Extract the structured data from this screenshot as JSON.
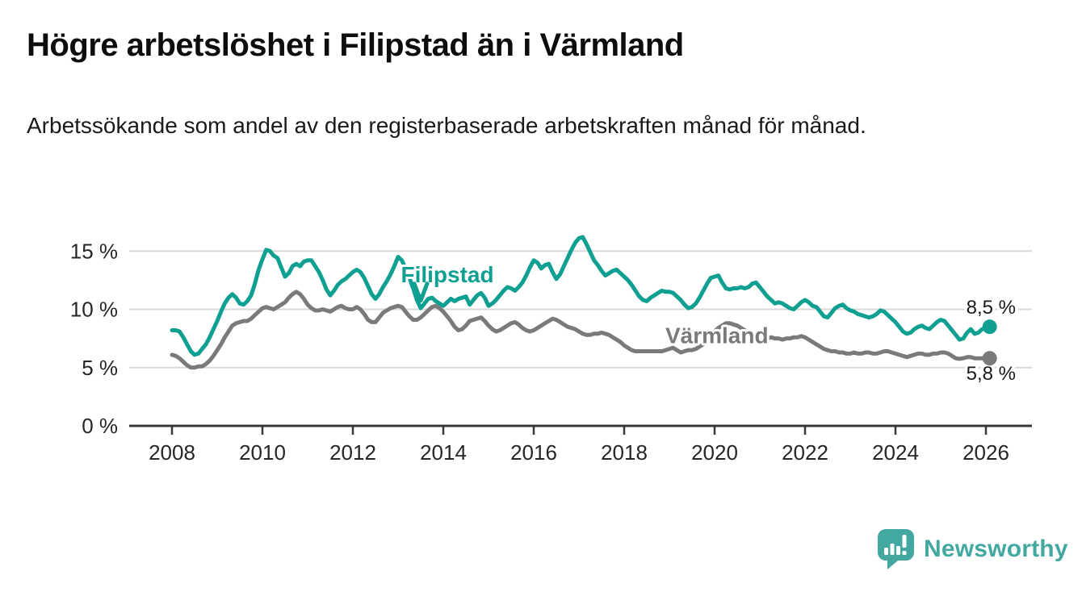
{
  "header": {
    "title": "Högre arbetslöshet i Filipstad än i Värmland",
    "subtitle": "Arbetssökande som andel av den registerbaserade arbetskraften månad för månad."
  },
  "footer": {
    "brand": "Newsworthy"
  },
  "colors": {
    "filipstad": "#10a091",
    "varmland": "#7a7a7a",
    "grid": "#d9d9d9",
    "axis": "#383838",
    "text": "#262626",
    "logo": "#42a8a0"
  },
  "chart_data": {
    "type": "line",
    "unit": "%",
    "decimal_separator": ",",
    "title": "Högre arbetslöshet i Filipstad än i Värmland",
    "xlabel": "",
    "ylabel": "",
    "x_start": 2008.0,
    "x_step": "1 month",
    "xlim": [
      2007.05,
      2027.0
    ],
    "ylim": [
      0,
      16.5
    ],
    "grid": true,
    "legend": "inline-labels",
    "x_ticks": [
      2008,
      2010,
      2012,
      2014,
      2016,
      2018,
      2020,
      2022,
      2024,
      2026
    ],
    "y_ticks": [
      {
        "value": 0,
        "label": "0 %"
      },
      {
        "value": 5,
        "label": "5 %"
      },
      {
        "value": 10,
        "label": "10 %"
      },
      {
        "value": 15,
        "label": "15 %"
      }
    ],
    "series": [
      {
        "name": "Filipstad",
        "color_key": "filipstad",
        "end_label": "8,5 %",
        "end_value": 8.5,
        "values": [
          8.2,
          8.2,
          8.1,
          7.6,
          7.0,
          6.4,
          6.1,
          6.2,
          6.6,
          7.0,
          7.6,
          8.3,
          9.0,
          9.8,
          10.5,
          11.0,
          11.3,
          11.0,
          10.5,
          10.4,
          10.7,
          11.2,
          12.2,
          13.4,
          14.3,
          15.1,
          15.0,
          14.6,
          14.4,
          13.6,
          12.8,
          13.1,
          13.7,
          13.9,
          13.7,
          14.1,
          14.2,
          14.2,
          13.7,
          13.2,
          12.5,
          11.7,
          11.2,
          11.6,
          12.1,
          12.4,
          12.6,
          12.9,
          13.2,
          13.4,
          13.2,
          12.7,
          12.0,
          11.3,
          10.9,
          11.3,
          11.9,
          12.4,
          13.0,
          13.7,
          14.5,
          14.2,
          13.5,
          12.7,
          11.8,
          10.8,
          10.1,
          10.5,
          10.9,
          11.0,
          10.7,
          10.5,
          10.3,
          10.6,
          10.9,
          10.7,
          10.9,
          11.0,
          11.1,
          10.4,
          10.8,
          11.2,
          11.4,
          11.0,
          10.3,
          10.5,
          10.8,
          11.2,
          11.6,
          11.9,
          11.8,
          11.6,
          11.9,
          12.3,
          12.9,
          13.6,
          14.2,
          14.0,
          13.5,
          13.8,
          13.9,
          13.2,
          12.6,
          13.0,
          13.7,
          14.4,
          15.1,
          15.7,
          16.1,
          16.2,
          15.6,
          14.9,
          14.2,
          13.8,
          13.3,
          12.9,
          13.1,
          13.3,
          13.4,
          13.1,
          12.8,
          12.5,
          12.1,
          11.6,
          11.1,
          10.8,
          10.7,
          11.0,
          11.2,
          11.4,
          11.6,
          11.5,
          11.5,
          11.4,
          11.1,
          10.8,
          10.4,
          10.1,
          10.2,
          10.5,
          11.0,
          11.6,
          12.2,
          12.7,
          12.8,
          12.9,
          12.3,
          11.8,
          11.7,
          11.8,
          11.8,
          11.9,
          11.8,
          11.9,
          12.2,
          12.3,
          11.9,
          11.5,
          11.1,
          10.8,
          10.5,
          10.6,
          10.5,
          10.3,
          10.1,
          10.0,
          10.3,
          10.6,
          10.8,
          10.6,
          10.3,
          10.2,
          9.8,
          9.4,
          9.3,
          9.7,
          10.1,
          10.3,
          10.4,
          10.1,
          9.9,
          9.8,
          9.6,
          9.5,
          9.4,
          9.3,
          9.4,
          9.6,
          9.9,
          9.8,
          9.5,
          9.2,
          8.9,
          8.5,
          8.1,
          7.9,
          8.0,
          8.3,
          8.5,
          8.6,
          8.4,
          8.3,
          8.6,
          8.9,
          9.1,
          9.0,
          8.6,
          8.2,
          7.8,
          7.4,
          7.5,
          8.0,
          8.3,
          7.9,
          8.0,
          8.3,
          8.4,
          8.5
        ]
      },
      {
        "name": "Värmland",
        "color_key": "varmland",
        "end_label": "5,8 %",
        "end_value": 5.8,
        "values": [
          6.1,
          6.0,
          5.8,
          5.5,
          5.2,
          5.0,
          5.0,
          5.1,
          5.1,
          5.3,
          5.6,
          6.0,
          6.5,
          7.0,
          7.6,
          8.1,
          8.6,
          8.8,
          8.9,
          9.0,
          9.0,
          9.2,
          9.5,
          9.8,
          10.1,
          10.2,
          10.1,
          10.0,
          10.2,
          10.4,
          10.6,
          11.0,
          11.3,
          11.5,
          11.3,
          10.9,
          10.4,
          10.1,
          9.9,
          9.9,
          10.0,
          9.9,
          9.8,
          10.0,
          10.2,
          10.3,
          10.1,
          10.0,
          10.0,
          10.2,
          10.0,
          9.6,
          9.1,
          8.9,
          8.9,
          9.3,
          9.7,
          9.9,
          10.1,
          10.2,
          10.3,
          10.2,
          9.8,
          9.4,
          9.1,
          9.1,
          9.3,
          9.6,
          9.9,
          10.2,
          10.3,
          10.1,
          9.8,
          9.4,
          9.0,
          8.5,
          8.2,
          8.3,
          8.6,
          9.0,
          9.1,
          9.2,
          9.3,
          9.0,
          8.6,
          8.3,
          8.1,
          8.2,
          8.4,
          8.6,
          8.8,
          8.9,
          8.7,
          8.4,
          8.2,
          8.1,
          8.2,
          8.4,
          8.6,
          8.8,
          9.0,
          9.2,
          9.1,
          8.9,
          8.7,
          8.5,
          8.4,
          8.3,
          8.1,
          7.9,
          7.8,
          7.8,
          7.9,
          7.9,
          8.0,
          7.9,
          7.8,
          7.6,
          7.4,
          7.2,
          6.9,
          6.7,
          6.5,
          6.4,
          6.4,
          6.4,
          6.4,
          6.4,
          6.4,
          6.4,
          6.4,
          6.5,
          6.6,
          6.7,
          6.5,
          6.3,
          6.4,
          6.5,
          6.5,
          6.6,
          6.8,
          7.0,
          7.3,
          7.7,
          8.1,
          8.4,
          8.6,
          8.8,
          8.8,
          8.7,
          8.6,
          8.4,
          8.2,
          8.0,
          7.9,
          7.8,
          7.7,
          7.6,
          7.5,
          7.6,
          7.5,
          7.5,
          7.4,
          7.5,
          7.5,
          7.6,
          7.6,
          7.7,
          7.6,
          7.4,
          7.2,
          7.0,
          6.8,
          6.6,
          6.5,
          6.4,
          6.4,
          6.3,
          6.3,
          6.2,
          6.2,
          6.3,
          6.2,
          6.2,
          6.3,
          6.3,
          6.2,
          6.2,
          6.3,
          6.4,
          6.4,
          6.3,
          6.2,
          6.1,
          6.0,
          5.9,
          6.0,
          6.1,
          6.2,
          6.2,
          6.1,
          6.1,
          6.2,
          6.2,
          6.3,
          6.3,
          6.2,
          6.0,
          5.8,
          5.75,
          5.8,
          5.9,
          5.9,
          5.8,
          5.8,
          5.8,
          5.8,
          5.8
        ]
      }
    ],
    "annotations": [
      {
        "type": "label",
        "text": "Filipstad",
        "x": 2014.09,
        "y": 13.0,
        "color_key": "filipstad"
      },
      {
        "type": "arrow",
        "x": 2013.5,
        "y_top": 12.2,
        "y_tip": 10.75,
        "color_key": "filipstad"
      },
      {
        "type": "label",
        "text": "Värmland",
        "x": 2020.05,
        "y": 7.8,
        "color_key": "varmland"
      }
    ]
  }
}
